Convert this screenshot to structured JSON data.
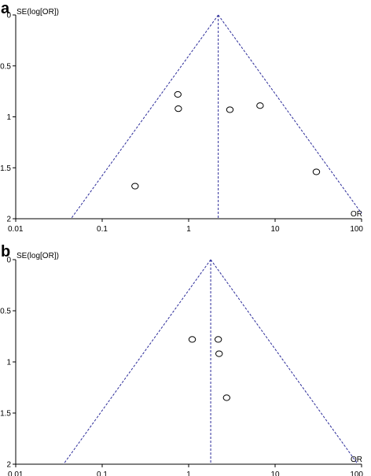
{
  "panels": [
    {
      "letter": "a",
      "ylabel": "SE(log[OR])",
      "xlabel": "OR"
    },
    {
      "letter": "b",
      "ylabel": "SE(log[OR])",
      "xlabel": "OR"
    }
  ],
  "colors": {
    "reference_lines": "#2b2b99",
    "points": "#000000",
    "axes": "#000000"
  },
  "chart_data": [
    {
      "type": "scatter",
      "subtype": "funnel",
      "x_scale": "log",
      "x_ticks": [
        0.01,
        0.1,
        1,
        10,
        100
      ],
      "x_tick_labels": [
        "0.01",
        "0.1",
        "1",
        "10",
        "100"
      ],
      "y_ticks": [
        0,
        0.5,
        1,
        1.5,
        2
      ],
      "y_tick_labels": [
        "0",
        "0.5",
        "1",
        "1.5",
        "2"
      ],
      "xlim": [
        0.01,
        100
      ],
      "ylim": [
        0,
        2
      ],
      "y_inverted": true,
      "xlabel": "OR",
      "ylabel": "SE(log[OR])",
      "pooled_or": 2.2,
      "points": [
        {
          "x": 0.75,
          "y": 0.78
        },
        {
          "x": 0.76,
          "y": 0.92
        },
        {
          "x": 3.0,
          "y": 0.93
        },
        {
          "x": 6.7,
          "y": 0.89
        },
        {
          "x": 0.24,
          "y": 1.68
        },
        {
          "x": 30,
          "y": 1.54
        }
      ]
    },
    {
      "type": "scatter",
      "subtype": "funnel",
      "x_scale": "log",
      "x_ticks": [
        0.01,
        0.1,
        1,
        10,
        100
      ],
      "x_tick_labels": [
        "0.01",
        "0.1",
        "1",
        "10",
        "100"
      ],
      "y_ticks": [
        0,
        0.5,
        1,
        1.5,
        2
      ],
      "y_tick_labels": [
        "0",
        "0.5",
        "1",
        "1.5",
        "2"
      ],
      "xlim": [
        0.01,
        100
      ],
      "ylim": [
        0,
        2
      ],
      "y_inverted": true,
      "xlabel": "OR",
      "ylabel": "SE(log[OR])",
      "pooled_or": 1.8,
      "points": [
        {
          "x": 1.1,
          "y": 0.78
        },
        {
          "x": 2.2,
          "y": 0.78
        },
        {
          "x": 2.25,
          "y": 0.92
        },
        {
          "x": 2.75,
          "y": 1.35
        }
      ]
    }
  ]
}
